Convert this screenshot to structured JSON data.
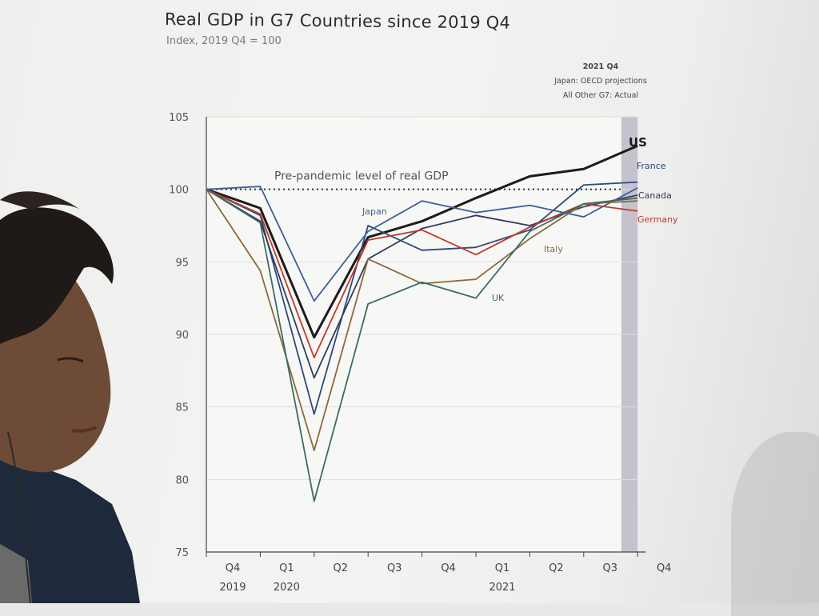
{
  "chart_data": {
    "type": "line",
    "title": "Real GDP in G7 Countries since 2019 Q4",
    "subtitle": "Index, 2019 Q4 = 100",
    "annotation": "Pre-pandemic level of real GDP",
    "shaded_note": [
      "2021 Q4",
      "Japan: OECD projections",
      "All Other G7: Actual"
    ],
    "ylim": [
      75,
      105
    ],
    "yticks": [
      "105",
      "100",
      "95",
      "90",
      "85",
      "80",
      "75"
    ],
    "categories": [
      "Q4",
      "Q1",
      "Q2",
      "Q3",
      "Q4",
      "Q1",
      "Q2",
      "Q3",
      "Q4"
    ],
    "year_labels": [
      "2019",
      "2020",
      "2021"
    ],
    "series": [
      {
        "name": "US",
        "color": "#1c1c1c",
        "values": [
          100,
          98.7,
          89.8,
          96.7,
          97.8,
          99.4,
          100.9,
          101.4,
          103
        ]
      },
      {
        "name": "France",
        "color": "#2e4a7a",
        "values": [
          100,
          98.2,
          84.5,
          97.5,
          95.8,
          96.0,
          97.2,
          100.3,
          100.5
        ]
      },
      {
        "name": "Canada",
        "color": "#2f3e5e",
        "values": [
          100,
          97.8,
          87.0,
          95.2,
          97.3,
          98.2,
          97.5,
          98.8,
          99.6
        ]
      },
      {
        "name": "Germany",
        "color": "#c0392b",
        "values": [
          100,
          98.3,
          88.4,
          96.5,
          97.2,
          95.5,
          97.4,
          99.0,
          98.5
        ]
      },
      {
        "name": "Japan",
        "color": "#3d5f99",
        "values": [
          100,
          100.2,
          92.3,
          97.1,
          99.2,
          98.4,
          98.9,
          98.1,
          100.1
        ]
      },
      {
        "name": "Italy",
        "color": "#8a6a3a",
        "values": [
          100,
          94.4,
          82.0,
          95.2,
          93.5,
          93.8,
          96.6,
          99.0,
          99.2
        ]
      },
      {
        "name": "UK",
        "color": "#3d6b62",
        "values": [
          100,
          97.7,
          78.5,
          92.1,
          93.6,
          92.5,
          97.1,
          99.0,
          99.4
        ]
      }
    ]
  }
}
